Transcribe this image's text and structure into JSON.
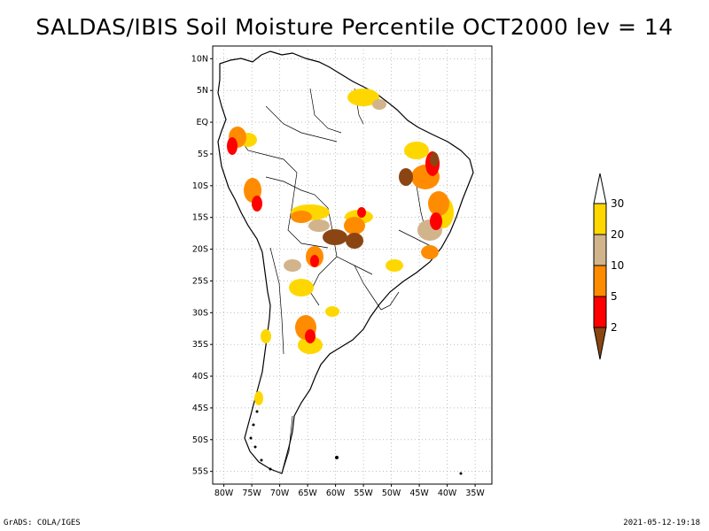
{
  "title": "SALDAS/IBIS Soil Moisture Percentile OCT2000 lev = 14",
  "footer": {
    "left": "GrADS: COLA/IGES",
    "right": "2021-05-12-19:18"
  },
  "axes": {
    "lat_labels": [
      "10N",
      "5N",
      "EQ",
      "5S",
      "10S",
      "15S",
      "20S",
      "25S",
      "30S",
      "35S",
      "40S",
      "45S",
      "50S",
      "55S"
    ],
    "lat_values": [
      10,
      5,
      0,
      -5,
      -10,
      -15,
      -20,
      -25,
      -30,
      -35,
      -40,
      -45,
      -50,
      -55
    ],
    "lon_labels": [
      "80W",
      "75W",
      "70W",
      "65W",
      "60W",
      "55W",
      "50W",
      "45W",
      "40W",
      "35W"
    ],
    "lon_values": [
      -80,
      -75,
      -70,
      -65,
      -60,
      -55,
      -50,
      -45,
      -40,
      -35
    ]
  },
  "legend": {
    "levels": [
      "2",
      "5",
      "10",
      "20",
      "30"
    ],
    "colors": [
      "#8b4513",
      "#ff0000",
      "#ff8c00",
      "#d2b48c",
      "#ffd700",
      "#ffffff"
    ]
  },
  "colors": {
    "brown": "#8b4513",
    "red": "#ff0000",
    "orange": "#ff8c00",
    "tan": "#d2b48c",
    "yellow": "#ffd700"
  }
}
